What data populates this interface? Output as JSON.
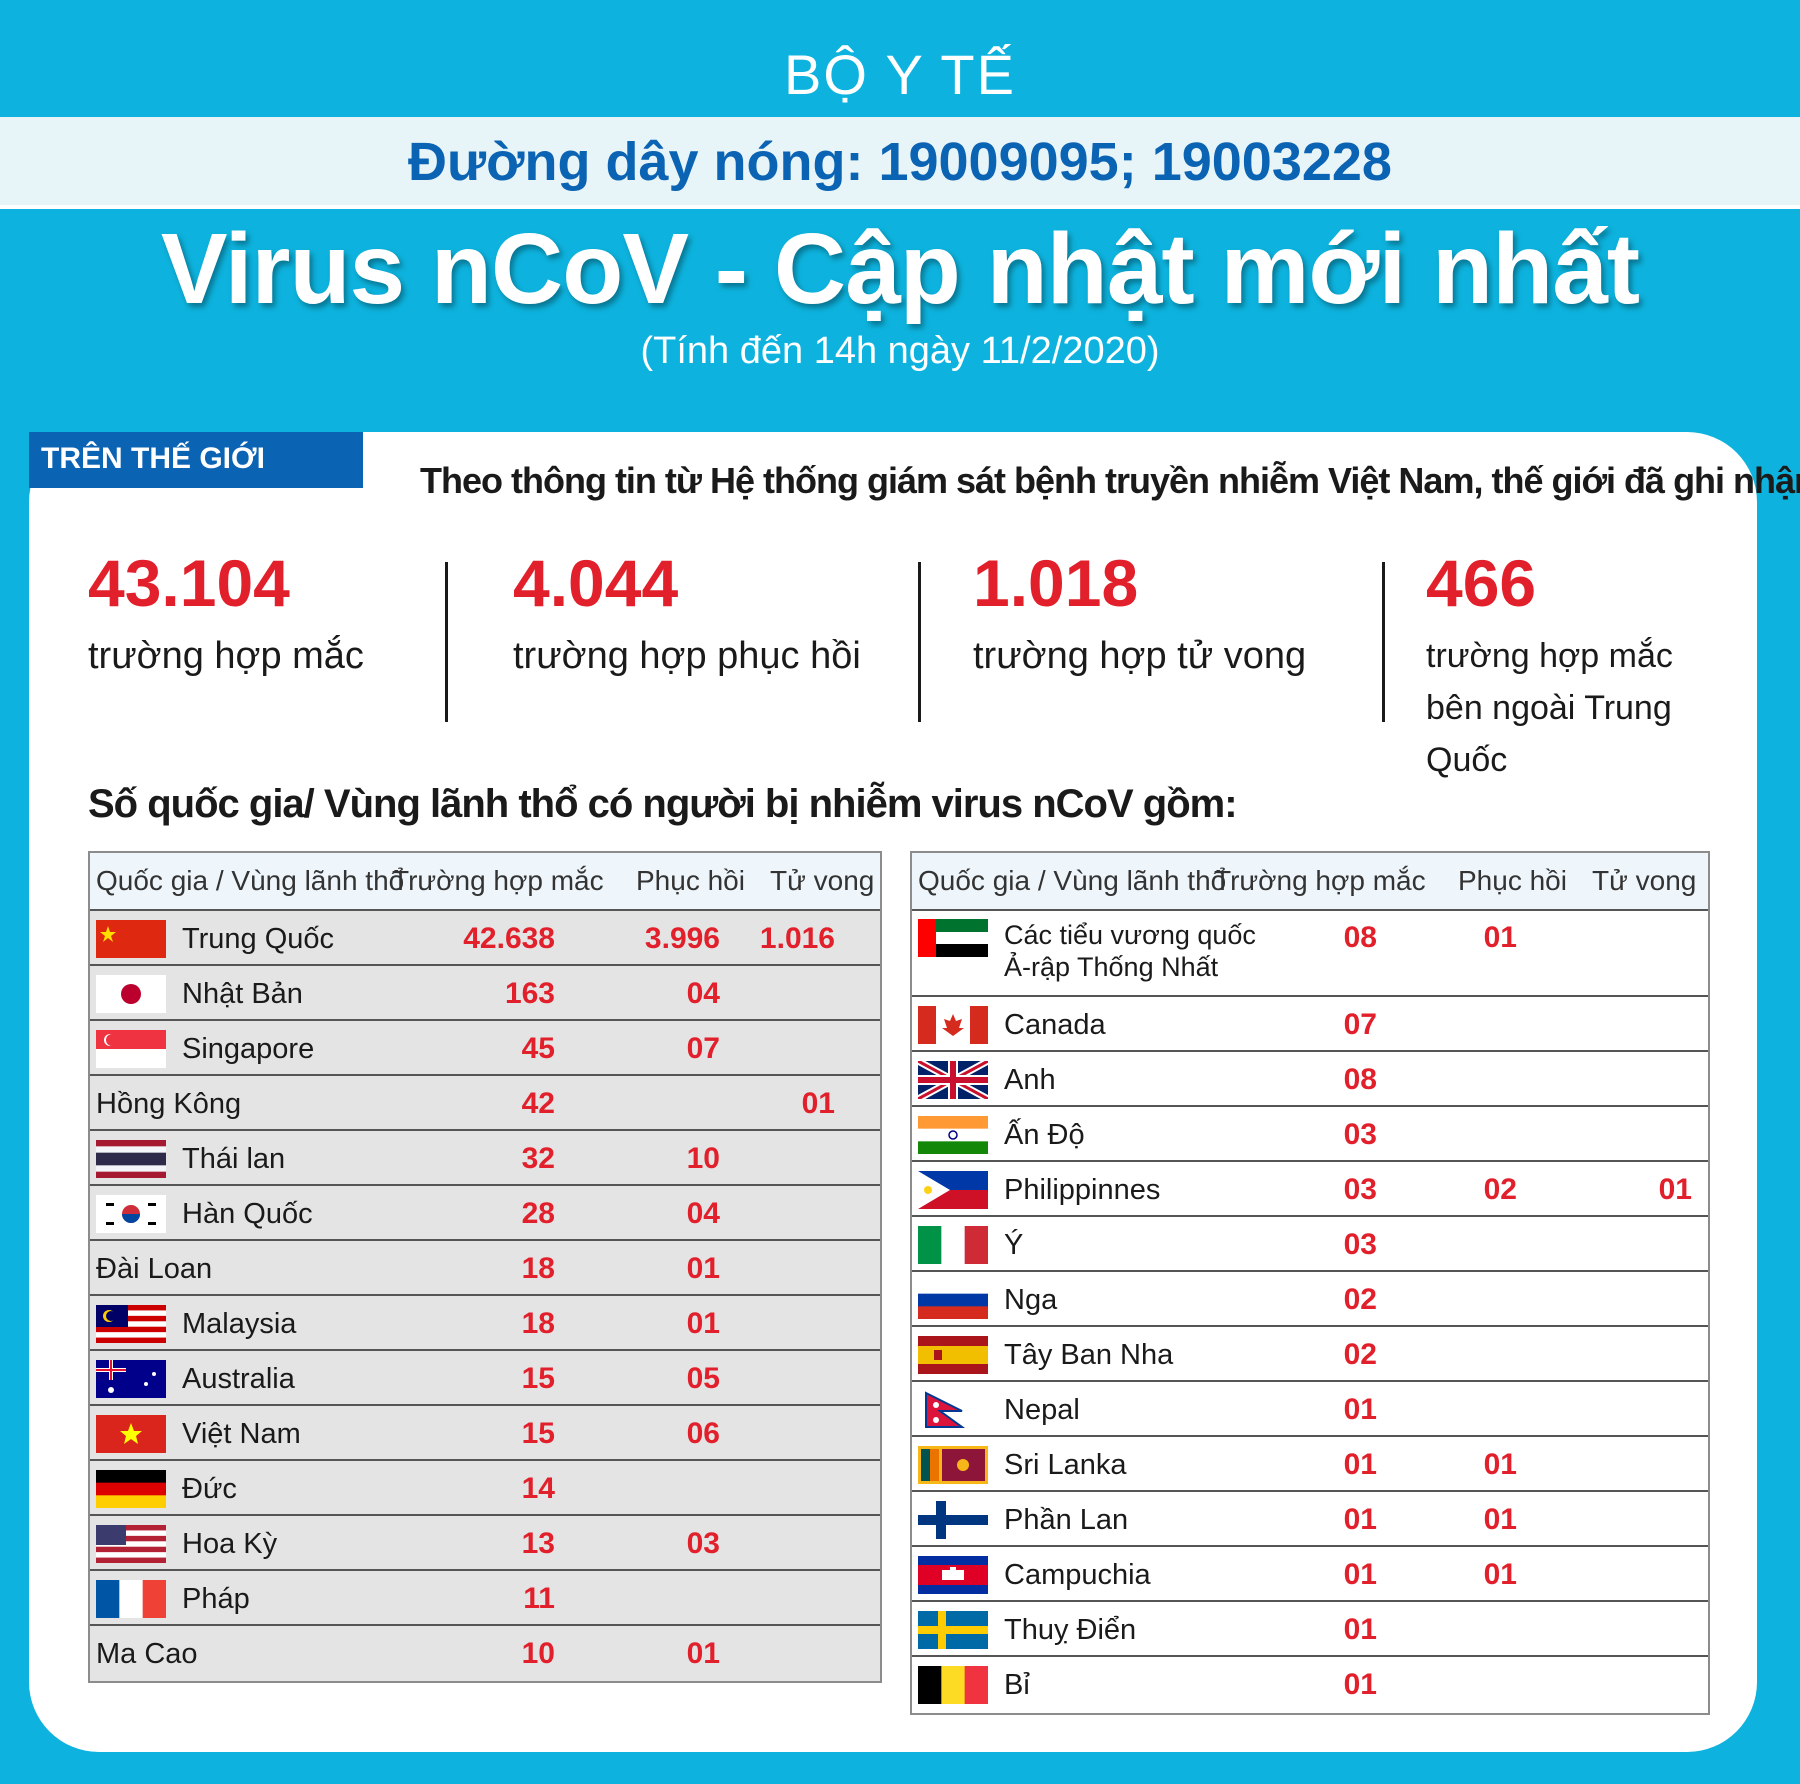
{
  "header": {
    "organization": "BỘ Y TẾ",
    "hotline": "Đường dây nóng: 19009095; 19003228",
    "title": "Virus nCoV - Cập nhật mới nhất",
    "subtitle": "(Tính đến 14h ngày 11/2/2020)"
  },
  "world": {
    "tab_label": "TRÊN THẾ GIỚI",
    "intro": "Theo thông tin từ Hệ thống giám sát bệnh truyền nhiễm Việt Nam, thế giới đã ghi nhận:",
    "stats": [
      {
        "value": "43.104",
        "label": "trường hợp mắc"
      },
      {
        "value": "4.044",
        "label": "trường hợp phục hồi"
      },
      {
        "value": "1.018",
        "label": "trường hợp tử vong"
      },
      {
        "value": "466",
        "label": "trường hợp mắc bên ngoài Trung Quốc"
      }
    ]
  },
  "countries_heading": "Số quốc gia/ Vùng lãnh thổ có người bị nhiễm virus nCoV gồm:",
  "table_headers": {
    "country": "Quốc gia / Vùng lãnh thổ",
    "cases": "Trường hợp mắc",
    "recovered": "Phục hồi",
    "deaths": "Tử vong"
  },
  "left_table": [
    {
      "name": "Trung Quốc",
      "cases": "42.638",
      "recovered": "3.996",
      "deaths": "1.016",
      "flag": "china"
    },
    {
      "name": "Nhật Bản",
      "cases": "163",
      "recovered": "04",
      "deaths": "",
      "flag": "japan"
    },
    {
      "name": "Singapore",
      "cases": "45",
      "recovered": "07",
      "deaths": "",
      "flag": "singapore"
    },
    {
      "name": "Hồng Kông",
      "cases": "42",
      "recovered": "",
      "deaths": "01",
      "flag": ""
    },
    {
      "name": "Thái lan",
      "cases": "32",
      "recovered": "10",
      "deaths": "",
      "flag": "thailand"
    },
    {
      "name": "Hàn Quốc",
      "cases": "28",
      "recovered": "04",
      "deaths": "",
      "flag": "korea"
    },
    {
      "name": "Đài Loan",
      "cases": "18",
      "recovered": "01",
      "deaths": "",
      "flag": ""
    },
    {
      "name": "Malaysia",
      "cases": "18",
      "recovered": "01",
      "deaths": "",
      "flag": "malaysia"
    },
    {
      "name": "Australia",
      "cases": "15",
      "recovered": "05",
      "deaths": "",
      "flag": "australia"
    },
    {
      "name": "Việt Nam",
      "cases": "15",
      "recovered": "06",
      "deaths": "",
      "flag": "vietnam"
    },
    {
      "name": "Đức",
      "cases": "14",
      "recovered": "",
      "deaths": "",
      "flag": "germany"
    },
    {
      "name": "Hoa Kỳ",
      "cases": "13",
      "recovered": "03",
      "deaths": "",
      "flag": "usa"
    },
    {
      "name": "Pháp",
      "cases": "11",
      "recovered": "",
      "deaths": "",
      "flag": "france"
    },
    {
      "name": "Ma Cao",
      "cases": "10",
      "recovered": "01",
      "deaths": "",
      "flag": ""
    }
  ],
  "right_table": [
    {
      "name": "Các tiểu vương quốc Ả-rập Thống Nhất",
      "cases": "08",
      "recovered": "01",
      "deaths": "",
      "flag": "uae"
    },
    {
      "name": "Canada",
      "cases": "07",
      "recovered": "",
      "deaths": "",
      "flag": "canada"
    },
    {
      "name": "Anh",
      "cases": "08",
      "recovered": "",
      "deaths": "",
      "flag": "uk"
    },
    {
      "name": "Ấn Độ",
      "cases": "03",
      "recovered": "",
      "deaths": "",
      "flag": "india"
    },
    {
      "name": "Philippinnes",
      "cases": "03",
      "recovered": "02",
      "deaths": "01",
      "flag": "philippines"
    },
    {
      "name": "Ý",
      "cases": "03",
      "recovered": "",
      "deaths": "",
      "flag": "italy"
    },
    {
      "name": "Nga",
      "cases": "02",
      "recovered": "",
      "deaths": "",
      "flag": "russia"
    },
    {
      "name": "Tây Ban Nha",
      "cases": "02",
      "recovered": "",
      "deaths": "",
      "flag": "spain"
    },
    {
      "name": "Nepal",
      "cases": "01",
      "recovered": "",
      "deaths": "",
      "flag": "nepal"
    },
    {
      "name": "Sri Lanka",
      "cases": "01",
      "recovered": "01",
      "deaths": "",
      "flag": "srilanka"
    },
    {
      "name": "Phần Lan",
      "cases": "01",
      "recovered": "01",
      "deaths": "",
      "flag": "finland"
    },
    {
      "name": "Campuchia",
      "cases": "01",
      "recovered": "01",
      "deaths": "",
      "flag": "cambodia"
    },
    {
      "name": "Thuỵ Điển",
      "cases": "01",
      "recovered": "",
      "deaths": "",
      "flag": "sweden"
    },
    {
      "name": "Bỉ",
      "cases": "01",
      "recovered": "",
      "deaths": "",
      "flag": "belgium"
    }
  ],
  "colors": {
    "background": "#0db3de",
    "accent_blue": "#0b63b3",
    "number_red": "#e1202b"
  }
}
